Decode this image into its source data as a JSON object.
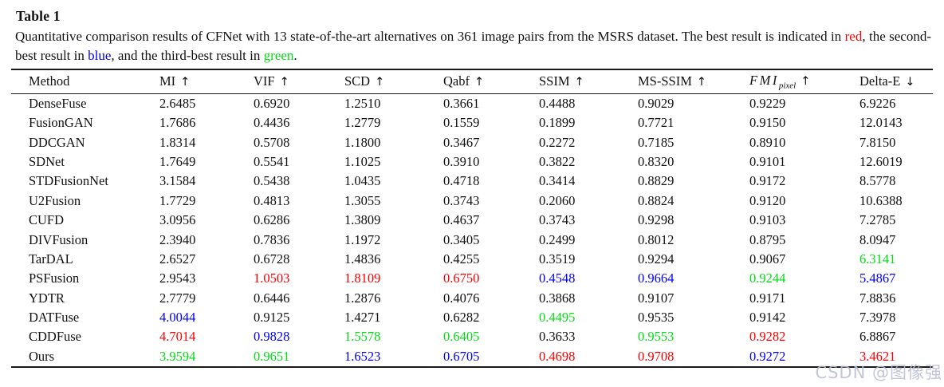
{
  "title": "Table 1",
  "caption": {
    "part1": "Quantitative comparison results of CFNet with 13 state-of-the-art alternatives on 361 image pairs from the MSRS dataset. The best result is indicated in ",
    "red_word": "red",
    "part2": ", the second-best result in ",
    "blue_word": "blue",
    "part3": ", and the third-best result in ",
    "green_word": "green",
    "part4": "."
  },
  "colors": {
    "best": "#ff0000",
    "second": "#0000ff",
    "third": "#00dd11",
    "text": "#111111"
  },
  "watermark": "CSDN @图像强",
  "chart_data": {
    "type": "table",
    "legend": {
      "red": "best result",
      "blue": "second-best result",
      "green": "third-best result"
    },
    "columns": [
      {
        "label": "Method",
        "arrow": ""
      },
      {
        "label": "MI",
        "arrow": "↑"
      },
      {
        "label": "VIF",
        "arrow": "↑"
      },
      {
        "label": "SCD",
        "arrow": "↑"
      },
      {
        "label": "Qabf",
        "arrow": "↑"
      },
      {
        "label": "SSIM",
        "arrow": "↑"
      },
      {
        "label": "MS-SSIM",
        "arrow": "↑"
      },
      {
        "label": "FMI",
        "sub": "pixel",
        "italic": true,
        "arrow": "↑"
      },
      {
        "label": "Delta-E",
        "arrow": "↓"
      }
    ],
    "rows": [
      {
        "method": "DenseFuse",
        "cells": [
          {
            "v": "2.6485",
            "c": "k"
          },
          {
            "v": "0.6920",
            "c": "k"
          },
          {
            "v": "1.2510",
            "c": "k"
          },
          {
            "v": "0.3661",
            "c": "k"
          },
          {
            "v": "0.4488",
            "c": "k"
          },
          {
            "v": "0.9029",
            "c": "k"
          },
          {
            "v": "0.9229",
            "c": "k"
          },
          {
            "v": "6.9226",
            "c": "k"
          }
        ]
      },
      {
        "method": "FusionGAN",
        "cells": [
          {
            "v": "1.7686",
            "c": "k"
          },
          {
            "v": "0.4436",
            "c": "k"
          },
          {
            "v": "1.2779",
            "c": "k"
          },
          {
            "v": "0.1559",
            "c": "k"
          },
          {
            "v": "0.1899",
            "c": "k"
          },
          {
            "v": "0.7721",
            "c": "k"
          },
          {
            "v": "0.9150",
            "c": "k"
          },
          {
            "v": "12.0143",
            "c": "k"
          }
        ]
      },
      {
        "method": "DDCGAN",
        "cells": [
          {
            "v": "1.8314",
            "c": "k"
          },
          {
            "v": "0.5708",
            "c": "k"
          },
          {
            "v": "1.1800",
            "c": "k"
          },
          {
            "v": "0.3467",
            "c": "k"
          },
          {
            "v": "0.2272",
            "c": "k"
          },
          {
            "v": "0.7185",
            "c": "k"
          },
          {
            "v": "0.8910",
            "c": "k"
          },
          {
            "v": "7.8150",
            "c": "k"
          }
        ]
      },
      {
        "method": "SDNet",
        "cells": [
          {
            "v": "1.7649",
            "c": "k"
          },
          {
            "v": "0.5541",
            "c": "k"
          },
          {
            "v": "1.1025",
            "c": "k"
          },
          {
            "v": "0.3910",
            "c": "k"
          },
          {
            "v": "0.3822",
            "c": "k"
          },
          {
            "v": "0.8320",
            "c": "k"
          },
          {
            "v": "0.9101",
            "c": "k"
          },
          {
            "v": "12.6019",
            "c": "k"
          }
        ]
      },
      {
        "method": "STDFusionNet",
        "cells": [
          {
            "v": "3.1584",
            "c": "k"
          },
          {
            "v": "0.5438",
            "c": "k"
          },
          {
            "v": "1.0435",
            "c": "k"
          },
          {
            "v": "0.4718",
            "c": "k"
          },
          {
            "v": "0.3414",
            "c": "k"
          },
          {
            "v": "0.8829",
            "c": "k"
          },
          {
            "v": "0.9172",
            "c": "k"
          },
          {
            "v": "8.5778",
            "c": "k"
          }
        ]
      },
      {
        "method": "U2Fusion",
        "cells": [
          {
            "v": "1.7729",
            "c": "k"
          },
          {
            "v": "0.4813",
            "c": "k"
          },
          {
            "v": "1.3055",
            "c": "k"
          },
          {
            "v": "0.3743",
            "c": "k"
          },
          {
            "v": "0.2060",
            "c": "k"
          },
          {
            "v": "0.8824",
            "c": "k"
          },
          {
            "v": "0.9120",
            "c": "k"
          },
          {
            "v": "10.6388",
            "c": "k"
          }
        ]
      },
      {
        "method": "CUFD",
        "cells": [
          {
            "v": "3.0956",
            "c": "k"
          },
          {
            "v": "0.6286",
            "c": "k"
          },
          {
            "v": "1.3809",
            "c": "k"
          },
          {
            "v": "0.4637",
            "c": "k"
          },
          {
            "v": "0.3743",
            "c": "k"
          },
          {
            "v": "0.9298",
            "c": "k"
          },
          {
            "v": "0.9103",
            "c": "k"
          },
          {
            "v": "7.2785",
            "c": "k"
          }
        ]
      },
      {
        "method": "DIVFusion",
        "cells": [
          {
            "v": "2.3940",
            "c": "k"
          },
          {
            "v": "0.7836",
            "c": "k"
          },
          {
            "v": "1.1972",
            "c": "k"
          },
          {
            "v": "0.3405",
            "c": "k"
          },
          {
            "v": "0.2499",
            "c": "k"
          },
          {
            "v": "0.8012",
            "c": "k"
          },
          {
            "v": "0.8795",
            "c": "k"
          },
          {
            "v": "8.0947",
            "c": "k"
          }
        ]
      },
      {
        "method": "TarDAL",
        "cells": [
          {
            "v": "2.6527",
            "c": "k"
          },
          {
            "v": "0.6728",
            "c": "k"
          },
          {
            "v": "1.4836",
            "c": "k"
          },
          {
            "v": "0.4255",
            "c": "k"
          },
          {
            "v": "0.3519",
            "c": "k"
          },
          {
            "v": "0.9294",
            "c": "k"
          },
          {
            "v": "0.9067",
            "c": "k"
          },
          {
            "v": "6.3141",
            "c": "g"
          }
        ]
      },
      {
        "method": "PSFusion",
        "cells": [
          {
            "v": "2.9543",
            "c": "k"
          },
          {
            "v": "1.0503",
            "c": "r"
          },
          {
            "v": "1.8109",
            "c": "r"
          },
          {
            "v": "0.6750",
            "c": "r"
          },
          {
            "v": "0.4548",
            "c": "b"
          },
          {
            "v": "0.9664",
            "c": "b"
          },
          {
            "v": "0.9244",
            "c": "g"
          },
          {
            "v": "5.4867",
            "c": "b"
          }
        ]
      },
      {
        "method": "YDTR",
        "cells": [
          {
            "v": "2.7779",
            "c": "k"
          },
          {
            "v": "0.6446",
            "c": "k"
          },
          {
            "v": "1.2876",
            "c": "k"
          },
          {
            "v": "0.4076",
            "c": "k"
          },
          {
            "v": "0.3868",
            "c": "k"
          },
          {
            "v": "0.9107",
            "c": "k"
          },
          {
            "v": "0.9171",
            "c": "k"
          },
          {
            "v": "7.8836",
            "c": "k"
          }
        ]
      },
      {
        "method": "DATFuse",
        "cells": [
          {
            "v": "4.0044",
            "c": "b"
          },
          {
            "v": "0.9125",
            "c": "k"
          },
          {
            "v": "1.4271",
            "c": "k"
          },
          {
            "v": "0.6282",
            "c": "k"
          },
          {
            "v": "0.4495",
            "c": "g"
          },
          {
            "v": "0.9535",
            "c": "k"
          },
          {
            "v": "0.9142",
            "c": "k"
          },
          {
            "v": "7.3978",
            "c": "k"
          }
        ]
      },
      {
        "method": "CDDFuse",
        "cells": [
          {
            "v": "4.7014",
            "c": "r"
          },
          {
            "v": "0.9828",
            "c": "b"
          },
          {
            "v": "1.5578",
            "c": "g"
          },
          {
            "v": "0.6405",
            "c": "g"
          },
          {
            "v": "0.3633",
            "c": "k"
          },
          {
            "v": "0.9553",
            "c": "g"
          },
          {
            "v": "0.9282",
            "c": "r"
          },
          {
            "v": "6.8867",
            "c": "k"
          }
        ]
      },
      {
        "method": "Ours",
        "cells": [
          {
            "v": "3.9594",
            "c": "g"
          },
          {
            "v": "0.9651",
            "c": "g"
          },
          {
            "v": "1.6523",
            "c": "b"
          },
          {
            "v": "0.6705",
            "c": "b"
          },
          {
            "v": "0.4698",
            "c": "r"
          },
          {
            "v": "0.9708",
            "c": "r"
          },
          {
            "v": "0.9272",
            "c": "b"
          },
          {
            "v": "3.4621",
            "c": "r"
          }
        ]
      }
    ]
  }
}
